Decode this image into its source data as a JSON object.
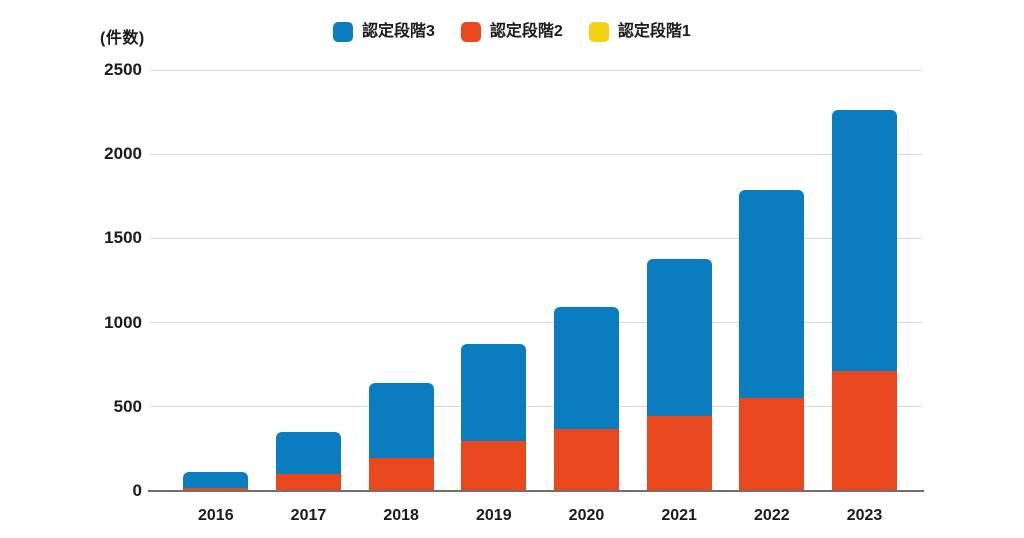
{
  "unit_label": "(件数)",
  "colors": {
    "stage3_blue": "#0a7dc1",
    "stage2_orange": "#e9481f",
    "stage1_yellow": "#f4d211",
    "gridline": "#d7d7d7",
    "axis_line": "#6f6f6f",
    "text": "#1b1b1b",
    "background": "#ffffff"
  },
  "legend": [
    {
      "label": "認定段階3",
      "color": "#0a7dc1"
    },
    {
      "label": "認定段階2",
      "color": "#e9481f"
    },
    {
      "label": "認定段階1",
      "color": "#f4d211"
    }
  ],
  "chart_data": {
    "type": "bar",
    "stacked": true,
    "title": "",
    "ylabel": "(件数)",
    "xlabel": "",
    "categories": [
      "2016",
      "2017",
      "2018",
      "2019",
      "2020",
      "2021",
      "2022",
      "2023"
    ],
    "series": [
      {
        "name": "認定段階1",
        "color": "#f4d211",
        "values": [
          0,
          0,
          0,
          0,
          0,
          0,
          0,
          0
        ]
      },
      {
        "name": "認定段階2",
        "color": "#e9481f",
        "values": [
          15,
          100,
          195,
          295,
          370,
          445,
          555,
          710
        ]
      },
      {
        "name": "認定段階3",
        "color": "#0a7dc1",
        "values": [
          95,
          250,
          445,
          575,
          725,
          935,
          1235,
          1550
        ]
      }
    ],
    "totals": [
      110,
      350,
      640,
      870,
      1095,
      1380,
      1790,
      2260
    ],
    "yticks": [
      0,
      500,
      1000,
      1500,
      2000,
      2500
    ],
    "ylim": [
      0,
      2500
    ],
    "grid": true,
    "legend_position": "top"
  }
}
